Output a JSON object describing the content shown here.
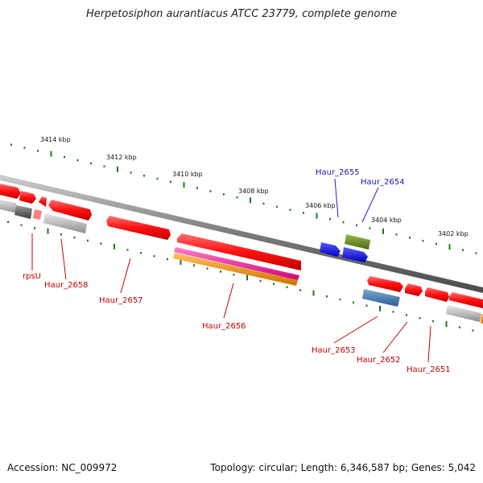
{
  "title": "Herpetosiphon aurantiacus ATCC 23779, complete genome",
  "footer": {
    "accession": "Accession: NC_009972",
    "summary": "Topology: circular; Length: 6,346,587 bp; Genes: 5,042"
  },
  "scale_labels": [
    "3414 kbp",
    "3412 kbp",
    "3410 kbp",
    "3408 kbp",
    "3406 kbp",
    "3404 kbp",
    "3402 kbp"
  ],
  "gene_labels": [
    {
      "text": "Haur_2655",
      "color": "#1a1aa8"
    },
    {
      "text": "Haur_2654",
      "color": "#1a1aa8"
    },
    {
      "text": "rpsU",
      "color": "#c00000"
    },
    {
      "text": "Haur_2658",
      "color": "#c00000"
    },
    {
      "text": "Haur_2657",
      "color": "#c00000"
    },
    {
      "text": "Haur_2656",
      "color": "#c00000"
    },
    {
      "text": "Haur_2653",
      "color": "#c00000"
    },
    {
      "text": "Haur_2652",
      "color": "#c00000"
    },
    {
      "text": "Haur_2651",
      "color": "#c00000"
    }
  ],
  "colors": {
    "backbone": "#8a8a8a",
    "tick": "#1e7a1e",
    "cds": "#ff1a1a",
    "pseudo": "#b8b8b8",
    "blue_gene": "#1010f0",
    "steelblue_gene": "#4a80b8",
    "olive_gene": "#6b8e23",
    "pink_gene": "#ff2aa0",
    "orange_gene": "#ff9a00"
  }
}
